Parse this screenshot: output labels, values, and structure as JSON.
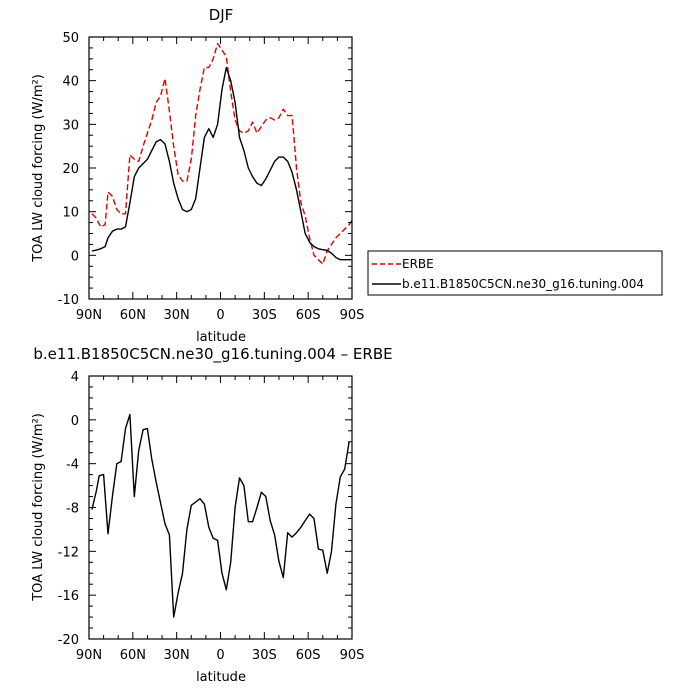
{
  "chart_data": [
    {
      "type": "line",
      "title": "DJF",
      "xlabel": "latitude",
      "ylabel": "TOA LW cloud forcing (W/m²)",
      "xlim": [
        90,
        -90
      ],
      "ylim": [
        -10,
        50
      ],
      "xticks": [
        {
          "value": 90,
          "label": "90N"
        },
        {
          "value": 60,
          "label": "60N"
        },
        {
          "value": 30,
          "label": "30N"
        },
        {
          "value": 0,
          "label": "0"
        },
        {
          "value": -30,
          "label": "30S"
        },
        {
          "value": -60,
          "label": "60S"
        },
        {
          "value": -90,
          "label": "90S"
        }
      ],
      "yticks": [
        -10,
        0,
        10,
        20,
        30,
        40,
        50
      ],
      "legend_position": "right",
      "series": [
        {
          "name": "ERBE",
          "color": "#e00000",
          "dash": true,
          "x": [
            88,
            85,
            82,
            79,
            77,
            74,
            71,
            68,
            65,
            62,
            59,
            56,
            53,
            50,
            47,
            44,
            41,
            38,
            35,
            32,
            29,
            26,
            23,
            20,
            17,
            14,
            11,
            8,
            5,
            2,
            -1,
            -4,
            -7,
            -10,
            -13,
            -16,
            -19,
            -22,
            -25,
            -28,
            -31,
            -34,
            -37,
            -40,
            -43,
            -46,
            -49,
            -52,
            -55,
            -58,
            -61,
            -64,
            -67,
            -70,
            -73,
            -76,
            -79,
            -82,
            -85,
            -88,
            -90
          ],
          "y": [
            9.5,
            8.5,
            6.5,
            7,
            14.5,
            13.5,
            10.5,
            9.5,
            9.5,
            23,
            22,
            21.5,
            25,
            28,
            31,
            35,
            36.5,
            40.5,
            33,
            25,
            18.5,
            17,
            17,
            22,
            32,
            38,
            43,
            43,
            45,
            48.5,
            47,
            45.5,
            37.5,
            31,
            28.5,
            28,
            28.5,
            30.5,
            28,
            29.5,
            31,
            31.5,
            31,
            31.5,
            33.5,
            32,
            32,
            20,
            12,
            9,
            4,
            0,
            -1,
            -2,
            1,
            2.5,
            4,
            5,
            6,
            7,
            8
          ]
        },
        {
          "name": "b.e11.B1850C5CN.ne30_g16.tuning.004",
          "color": "#000000",
          "dash": false,
          "x": [
            88,
            85,
            82,
            79,
            77,
            74,
            71,
            68,
            65,
            62,
            59,
            56,
            53,
            50,
            47,
            44,
            41,
            38,
            35,
            32,
            29,
            26,
            23,
            20,
            17,
            14,
            11,
            8,
            5,
            2,
            -1,
            -4,
            -7,
            -10,
            -13,
            -16,
            -19,
            -22,
            -25,
            -28,
            -31,
            -34,
            -37,
            -40,
            -43,
            -46,
            -49,
            -52,
            -55,
            -58,
            -61,
            -64,
            -67,
            -70,
            -73,
            -76,
            -79,
            -82,
            -85,
            -88,
            -90
          ],
          "y": [
            1,
            1.2,
            1.5,
            2,
            4,
            5.5,
            6,
            6,
            6.5,
            12,
            18,
            20,
            21,
            22,
            24,
            26,
            26.5,
            25.5,
            21.5,
            16.5,
            13,
            10.5,
            10,
            10.5,
            13,
            20,
            27,
            29,
            27,
            30,
            38,
            43,
            40,
            35,
            27,
            24,
            20,
            18,
            16.5,
            16,
            17.5,
            19.5,
            21.5,
            22.5,
            22.5,
            21.5,
            19,
            15,
            10,
            5,
            3,
            2,
            1.5,
            1.3,
            1.1,
            0.5,
            -0.5,
            -1,
            -1,
            -1,
            -1
          ]
        }
      ]
    },
    {
      "type": "line",
      "title": "b.e11.B1850C5CN.ne30_g16.tuning.004 – ERBE",
      "xlabel": "latitude",
      "ylabel": "TOA LW cloud forcing (W/m²)",
      "xlim": [
        90,
        -90
      ],
      "ylim": [
        -20,
        4
      ],
      "xticks": [
        {
          "value": 90,
          "label": "90N"
        },
        {
          "value": 60,
          "label": "60N"
        },
        {
          "value": 30,
          "label": "30N"
        },
        {
          "value": 0,
          "label": "0"
        },
        {
          "value": -30,
          "label": "30S"
        },
        {
          "value": -60,
          "label": "60S"
        },
        {
          "value": -90,
          "label": "90S"
        }
      ],
      "yticks": [
        -20,
        -16,
        -12,
        -8,
        -4,
        0,
        4
      ],
      "series": [
        {
          "color": "#000000",
          "x": [
            88,
            85,
            83,
            80,
            77,
            74,
            71,
            68,
            65,
            62,
            59,
            56,
            53,
            50,
            47,
            44,
            41,
            38,
            35,
            32,
            29,
            26,
            23,
            20,
            17,
            14,
            11,
            8,
            5,
            2,
            -1,
            -4,
            -7,
            -10,
            -13,
            -16,
            -19,
            -22,
            -25,
            -28,
            -31,
            -34,
            -37,
            -40,
            -43,
            -46,
            -49,
            -52,
            -55,
            -58,
            -61,
            -64,
            -67,
            -70,
            -73,
            -76,
            -79,
            -82,
            -85,
            -88
          ],
          "y": [
            -8.2,
            -6.5,
            -5.1,
            -5.0,
            -10.4,
            -7.0,
            -4.0,
            -3.8,
            -0.8,
            0.5,
            -7.0,
            -2.8,
            -0.9,
            -0.8,
            -3.6,
            -5.7,
            -7.6,
            -9.5,
            -10.5,
            -18.0,
            -15.8,
            -14.0,
            -10.0,
            -7.8,
            -7.5,
            -7.2,
            -7.7,
            -9.8,
            -10.8,
            -11.0,
            -14.0,
            -15.5,
            -13.0,
            -8.0,
            -5.3,
            -6.0,
            -9.3,
            -9.3,
            -8.0,
            -6.6,
            -7.0,
            -9.2,
            -10.5,
            -12.9,
            -14.4,
            -10.3,
            -10.7,
            -10.3,
            -9.8,
            -9.2,
            -8.6,
            -9.0,
            -11.8,
            -11.9,
            -14.0,
            -12.0,
            -7.7,
            -5.2,
            -4.5,
            -2.0
          ]
        }
      ]
    }
  ]
}
